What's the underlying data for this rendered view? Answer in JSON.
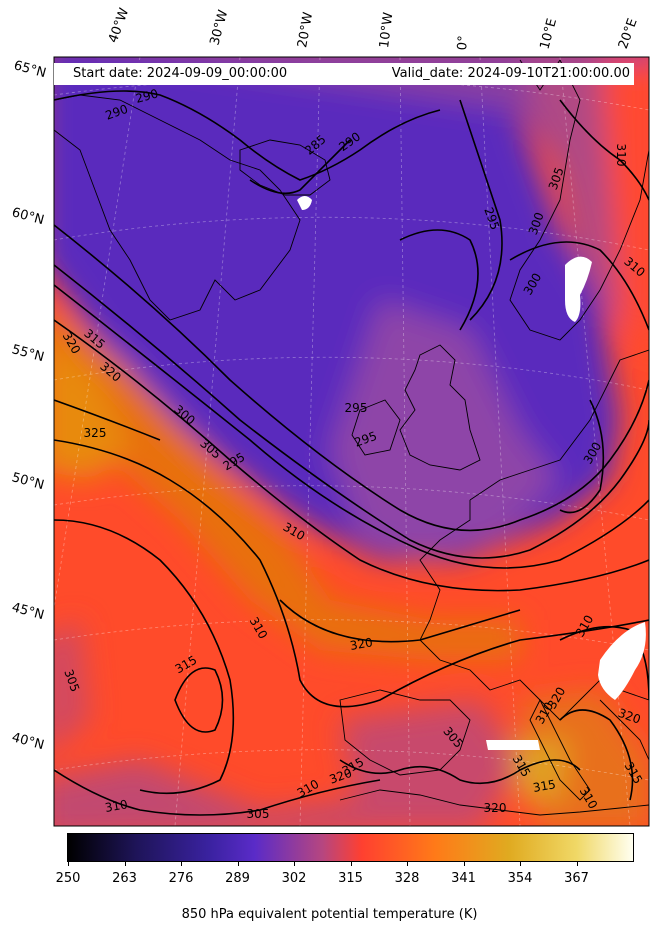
{
  "header": {
    "start_date": "Start date: 2024-09-09_00:00:00",
    "valid_date": "Valid_date: 2024-09-10T21:00:00.00"
  },
  "longitude_labels": [
    "40°W",
    "30°W",
    "20°W",
    "10°W",
    "0°",
    "10°E",
    "20°E"
  ],
  "latitude_labels": [
    "65°N",
    "60°N",
    "55°N",
    "50°N",
    "45°N",
    "40°N"
  ],
  "contour_labels": [
    "290",
    "290",
    "285",
    "290",
    "295",
    "300",
    "305",
    "310",
    "310",
    "300",
    "320",
    "315",
    "320",
    "325",
    "300",
    "305",
    "295",
    "295",
    "295",
    "300",
    "310",
    "310",
    "320",
    "315",
    "305",
    "310",
    "320",
    "305",
    "310",
    "315",
    "305",
    "310",
    "315",
    "320",
    "320",
    "315",
    "310",
    "310",
    "320",
    "315"
  ],
  "colorbar": {
    "ticks": [
      "250",
      "263",
      "276",
      "289",
      "302",
      "315",
      "328",
      "341",
      "354",
      "367"
    ],
    "caption": "850 hPa equivalent potential temperature (K)",
    "colors": [
      "#000000",
      "#2a1a6e",
      "#4b2bc2",
      "#8a3fa8",
      "#cc4a6e",
      "#ff4b2a",
      "#ff7a10",
      "#e8b22a",
      "#f5e070",
      "#ffffff"
    ]
  },
  "field_colors": {
    "cold_purple": "#5a2bb8",
    "mid_magenta": "#b6467e",
    "warm_red": "#ff4b2a",
    "hot_orange": "#e88a10"
  }
}
